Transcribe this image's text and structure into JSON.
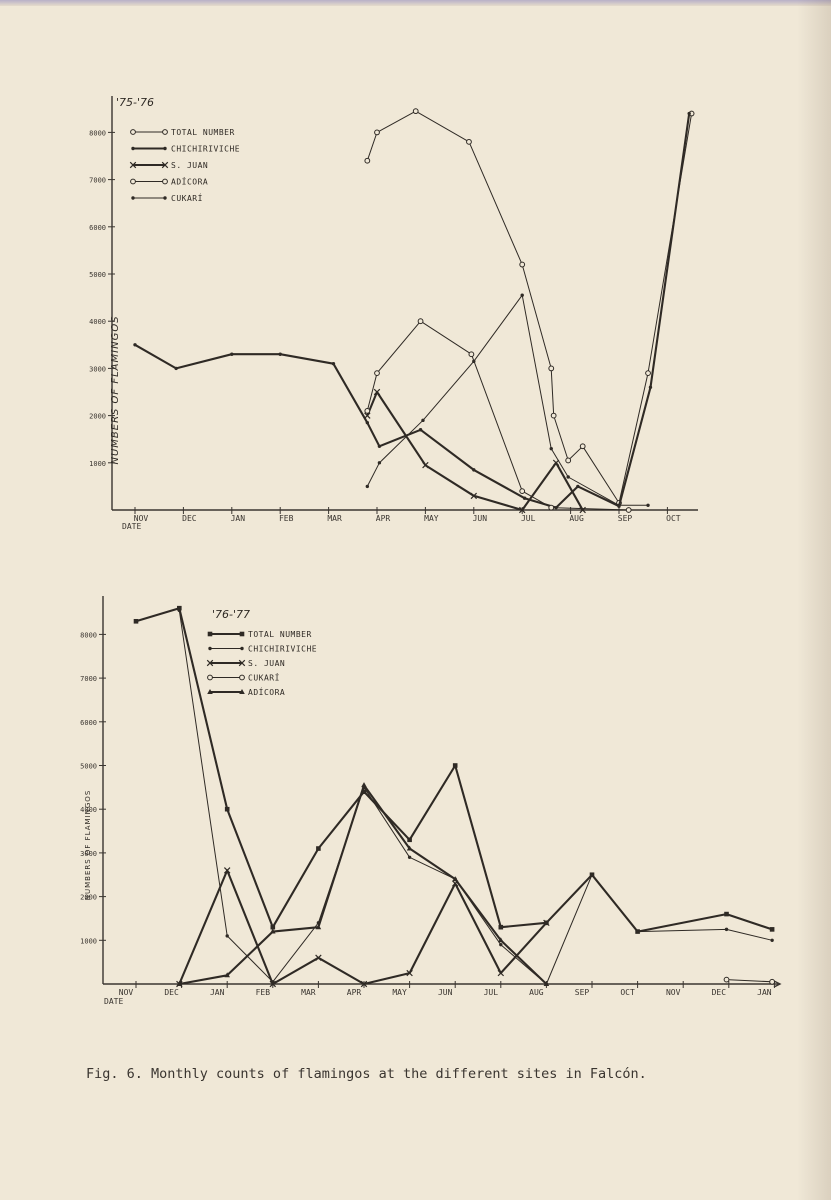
{
  "caption": "Fig. 6. Monthly counts of flamingos at the different sites in Falcón.",
  "chart_data": [
    {
      "type": "line",
      "title": "'75-'76",
      "xlabel": "DATE",
      "ylabel": "NUMBERS OF FLAMINGOS",
      "ylim": [
        0,
        8500
      ],
      "yticks": [
        1000,
        2000,
        3000,
        4000,
        5000,
        6000,
        7000,
        8000
      ],
      "ytick_labels": [
        "1000",
        "2000",
        "3000",
        "4000",
        "5000",
        "6000",
        "7000",
        "8000"
      ],
      "categories": [
        "NOV",
        "DEC",
        "JAN",
        "FEB",
        "MAR",
        "APR",
        "MAY",
        "JUN",
        "JUL",
        "AUG",
        "SEP",
        "OCT"
      ],
      "legend_location": "top-left",
      "series": [
        {
          "name": "TOTAL NUMBER",
          "marker": "circle",
          "weight": "thin",
          "points": [
            [
              4.8,
              7400
            ],
            [
              5.0,
              8000
            ],
            [
              5.8,
              8450
            ],
            [
              6.9,
              7800
            ],
            [
              8.0,
              5200
            ],
            [
              8.6,
              3000
            ],
            [
              8.65,
              2000
            ],
            [
              8.95,
              1050
            ],
            [
              9.25,
              1350
            ],
            [
              10.0,
              150
            ],
            [
              10.6,
              2900
            ],
            [
              11.5,
              8400
            ]
          ]
        },
        {
          "name": "CHICHIRIVICHE",
          "marker": "dot",
          "weight": "thick",
          "points": [
            [
              0,
              3500
            ],
            [
              0.85,
              3000
            ],
            [
              2.0,
              3300
            ],
            [
              3.0,
              3300
            ],
            [
              4.1,
              3100
            ],
            [
              4.8,
              1850
            ],
            [
              5.05,
              1350
            ],
            [
              5.9,
              1700
            ],
            [
              7.0,
              850
            ],
            [
              8.05,
              250
            ],
            [
              8.7,
              50
            ],
            [
              9.15,
              500
            ],
            [
              10.0,
              80
            ],
            [
              10.65,
              2600
            ],
            [
              11.45,
              8400
            ]
          ]
        },
        {
          "name": "S. JUAN",
          "marker": "cross",
          "weight": "thick",
          "points": [
            [
              4.8,
              2000
            ],
            [
              5.0,
              2500
            ],
            [
              6.0,
              950
            ],
            [
              7.0,
              300
            ],
            [
              8.0,
              0
            ],
            [
              8.7,
              1000
            ],
            [
              9.25,
              0
            ]
          ]
        },
        {
          "name": "ADÍCORA",
          "marker": "circle",
          "weight": "thin",
          "points": [
            [
              4.8,
              2100
            ],
            [
              5.0,
              2900
            ],
            [
              5.9,
              4000
            ],
            [
              6.95,
              3300
            ],
            [
              8.0,
              400
            ],
            [
              8.6,
              50
            ],
            [
              10.2,
              0
            ]
          ]
        },
        {
          "name": "CUKARÍ",
          "marker": "dot",
          "weight": "thin",
          "points": [
            [
              4.8,
              500
            ],
            [
              5.05,
              1000
            ],
            [
              5.95,
              1900
            ],
            [
              7.0,
              3150
            ],
            [
              8.0,
              4550
            ],
            [
              8.6,
              1300
            ],
            [
              8.95,
              700
            ],
            [
              10.0,
              100
            ],
            [
              10.6,
              100
            ]
          ]
        }
      ]
    },
    {
      "type": "line",
      "title": "'76-'77",
      "xlabel": "DATE",
      "ylabel": "NUMBERS OF FLAMINGOS",
      "ylim": [
        0,
        8700
      ],
      "yticks": [
        1000,
        2000,
        3000,
        4000,
        5000,
        6000,
        7000,
        8000
      ],
      "ytick_labels": [
        "1000",
        "2000",
        "3000",
        "4000",
        "5000",
        "6000",
        "7000",
        "8000"
      ],
      "categories": [
        "NOV",
        "DEC",
        "JAN",
        "FEB",
        "MAR",
        "APR",
        "MAY",
        "JUN",
        "JUL",
        "AUG",
        "SEP",
        "OCT",
        "NOV",
        "DEC",
        "JAN"
      ],
      "legend_location": "top-center",
      "series": [
        {
          "name": "TOTAL NUMBER",
          "marker": "square",
          "weight": "thick",
          "points": [
            [
              0,
              8300
            ],
            [
              0.95,
              8600
            ],
            [
              2.0,
              4000
            ],
            [
              3.0,
              1300
            ],
            [
              4.0,
              3100
            ],
            [
              5.0,
              4400
            ],
            [
              6.0,
              3300
            ],
            [
              7.0,
              5000
            ],
            [
              8.0,
              1300
            ],
            [
              9.0,
              1400
            ],
            [
              10.0,
              2500
            ],
            [
              11.0,
              1200
            ],
            [
              12.95,
              1600
            ],
            [
              13.95,
              1250
            ]
          ]
        },
        {
          "name": "CHICHIRIVICHE",
          "marker": "dot",
          "weight": "thin",
          "points": [
            [
              0.95,
              8550
            ],
            [
              2.0,
              1100
            ],
            [
              3.0,
              50
            ],
            [
              4.0,
              1400
            ],
            [
              5.0,
              4500
            ],
            [
              6.0,
              2900
            ],
            [
              7.0,
              2400
            ],
            [
              8.0,
              900
            ],
            [
              9.0,
              0
            ],
            [
              10.0,
              2500
            ],
            [
              11.0,
              1200
            ],
            [
              12.95,
              1250
            ],
            [
              13.95,
              1000
            ]
          ]
        },
        {
          "name": "S. JUAN",
          "marker": "cross",
          "weight": "thick",
          "points": [
            [
              0.95,
              0
            ],
            [
              2.0,
              2600
            ],
            [
              3.0,
              0
            ],
            [
              4.0,
              600
            ],
            [
              5.0,
              0
            ],
            [
              6.0,
              250
            ],
            [
              7.0,
              2300
            ],
            [
              8.0,
              250
            ],
            [
              9.0,
              1400
            ]
          ]
        },
        {
          "name": "CUKARÍ",
          "marker": "circle",
          "weight": "thin",
          "points": [
            [
              12.95,
              100
            ],
            [
              13.95,
              50
            ]
          ]
        },
        {
          "name": "ADÍCORA",
          "marker": "triangle",
          "weight": "thick",
          "points": [
            [
              0.95,
              0
            ],
            [
              2.0,
              200
            ],
            [
              3.0,
              1200
            ],
            [
              4.0,
              1300
            ],
            [
              5.0,
              4550
            ],
            [
              6.0,
              3100
            ],
            [
              7.0,
              2400
            ],
            [
              8.0,
              1000
            ],
            [
              9.0,
              0
            ]
          ]
        }
      ]
    }
  ]
}
